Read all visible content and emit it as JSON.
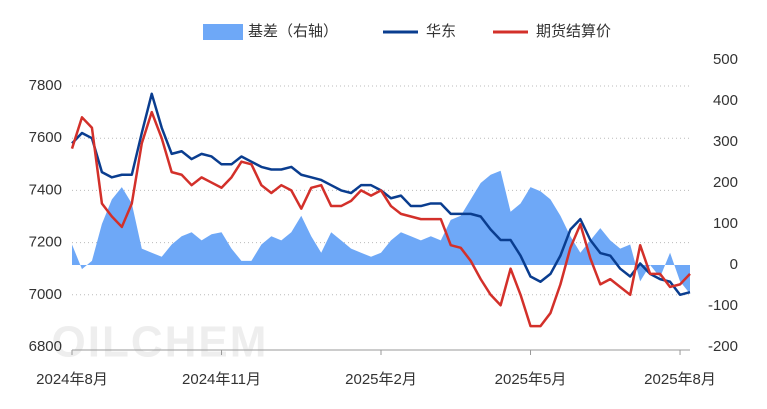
{
  "chart_data": {
    "type": "line",
    "watermark": "OILCHEM",
    "categories": [
      "2024年8月",
      null,
      null,
      null,
      null,
      null,
      null,
      null,
      null,
      null,
      null,
      null,
      null,
      null,
      null,
      "2024年11月",
      null,
      null,
      null,
      null,
      null,
      null,
      null,
      null,
      null,
      null,
      null,
      null,
      null,
      null,
      null,
      "2025年2月",
      null,
      null,
      null,
      null,
      null,
      null,
      null,
      null,
      null,
      null,
      null,
      null,
      null,
      null,
      "2025年5月",
      null,
      null,
      null,
      null,
      null,
      null,
      null,
      null,
      null,
      null,
      null,
      null,
      null,
      null,
      "2025年8月",
      null
    ],
    "series": [
      {
        "name": "基差（右轴）",
        "type": "area",
        "axis": "y2",
        "color": "#6ea8f7",
        "values": [
          50,
          -10,
          10,
          100,
          160,
          190,
          150,
          40,
          30,
          20,
          50,
          70,
          80,
          60,
          75,
          80,
          40,
          10,
          10,
          50,
          70,
          60,
          80,
          120,
          70,
          30,
          80,
          60,
          40,
          30,
          20,
          30,
          60,
          80,
          70,
          60,
          70,
          60,
          110,
          120,
          160,
          200,
          220,
          230,
          130,
          150,
          190,
          180,
          160,
          120,
          70,
          30,
          60,
          90,
          60,
          40,
          50,
          -40,
          0,
          -30,
          30,
          -40,
          -70
        ]
      },
      {
        "name": "华东",
        "type": "line",
        "color": "#0a3d8f",
        "values": [
          7580,
          7620,
          7600,
          7470,
          7450,
          7460,
          7460,
          7620,
          7770,
          7640,
          7540,
          7550,
          7520,
          7540,
          7530,
          7500,
          7500,
          7530,
          7510,
          7490,
          7480,
          7480,
          7490,
          7460,
          7450,
          7440,
          7420,
          7400,
          7390,
          7420,
          7420,
          7400,
          7370,
          7380,
          7340,
          7340,
          7350,
          7350,
          7310,
          7310,
          7310,
          7300,
          7250,
          7210,
          7210,
          7150,
          7070,
          7050,
          7080,
          7150,
          7250,
          7290,
          7210,
          7160,
          7150,
          7100,
          7070,
          7120,
          7080,
          7060,
          7050,
          7000,
          7010
        ]
      },
      {
        "name": "期货结算价",
        "type": "line",
        "color": "#d3302a",
        "values": [
          7560,
          7680,
          7640,
          7350,
          7300,
          7260,
          7350,
          7580,
          7700,
          7600,
          7470,
          7460,
          7420,
          7450,
          7430,
          7410,
          7450,
          7510,
          7500,
          7420,
          7390,
          7420,
          7400,
          7330,
          7410,
          7420,
          7340,
          7340,
          7360,
          7400,
          7380,
          7400,
          7340,
          7310,
          7300,
          7290,
          7290,
          7290,
          7190,
          7180,
          7130,
          7060,
          7000,
          6960,
          7100,
          7000,
          6880,
          6880,
          6930,
          7040,
          7180,
          7270,
          7140,
          7040,
          7060,
          7030,
          7000,
          7190,
          7080,
          7080,
          7030,
          7040,
          7080
        ]
      }
    ],
    "ylim": [
      6800,
      7800
    ],
    "yticks": [
      6800,
      7000,
      7200,
      7400,
      7600,
      7800
    ],
    "y2lim": [
      -200,
      500
    ],
    "y2ticks": [
      -200,
      -100,
      0,
      100,
      200,
      300,
      400,
      500
    ],
    "grid": true
  }
}
